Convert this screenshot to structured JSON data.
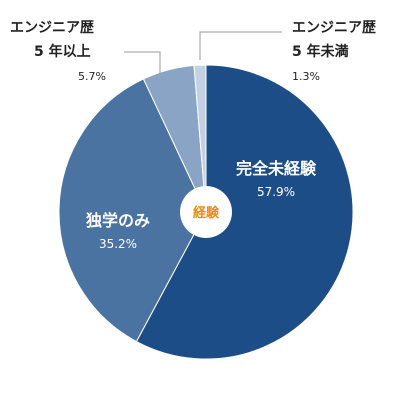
{
  "chart_data": {
    "type": "pie",
    "center_label": "経験",
    "slices": [
      {
        "label": "完全未経験",
        "value": 57.9,
        "value_label": "57.9%",
        "color": "#1d4d86"
      },
      {
        "label": "独学のみ",
        "value": 35.2,
        "value_label": "35.2%",
        "color": "#4a73a2"
      },
      {
        "label_lines": [
          "エンジニア歴",
          "5 年以上"
        ],
        "value": 5.7,
        "value_label": "5.7%",
        "color": "#89a4c4"
      },
      {
        "label_lines": [
          "エンジニア歴",
          "5 年未満"
        ],
        "value": 1.3,
        "value_label": "1.3%",
        "color": "#c3d1e2"
      }
    ],
    "center_label_color": "#e98a1c",
    "callout_line_color": "#999999"
  }
}
